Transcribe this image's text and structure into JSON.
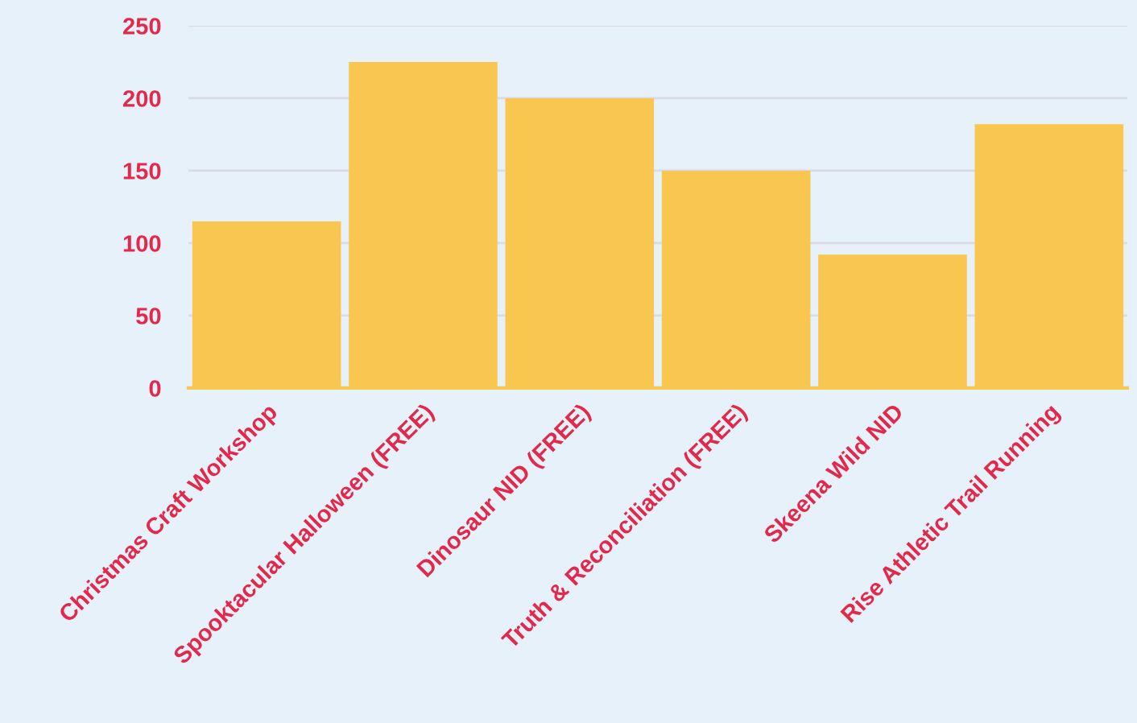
{
  "chart_data": {
    "type": "bar",
    "categories": [
      "Christmas Craft Workshop",
      "Spooktacular Halloween (FREE)",
      "Dinosaur NID (FREE)",
      "Truth & Reconciliation (FREE)",
      "Skeena Wild NID",
      "Rise Athletic Trail Running"
    ],
    "values": [
      115,
      225,
      200,
      150,
      92,
      182
    ],
    "color": "#f9c74f",
    "ylim": [
      0,
      250
    ],
    "yticks": [
      0,
      50,
      100,
      150,
      200,
      250
    ],
    "grid": "y"
  }
}
